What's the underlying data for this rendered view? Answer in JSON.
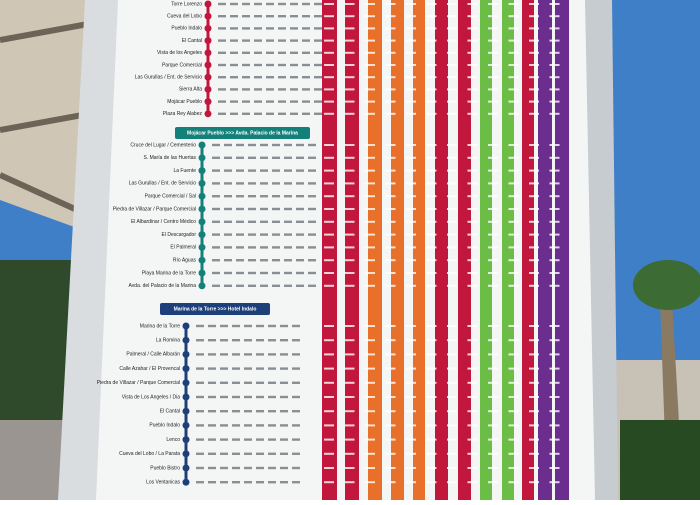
{
  "banners": [
    "Mojácar Pueblo >>> Avda. Palacio de la Marina",
    "Marina de la Torre >>> Hotel Indalo"
  ],
  "sections": [
    {
      "stops": [
        "Torre Lorenzo",
        "Cueva del Lobo",
        "Pueblo Indalo",
        "El Cantal",
        "Vista de los Angeles",
        "Parque Comercial",
        "Las Gurullas / Ent. de Servicio",
        "Sierra Alta",
        "Mojácar Pueblo",
        "Plaza Rey Alabez"
      ]
    },
    {
      "stops": [
        "Cruce del Lugar / Cementerio",
        "S. María de las Huertas",
        "La Fuente",
        "Las Gurullas / Ent. de Servicio",
        "Parque Comercial / Sal",
        "Piedra de Villazar / Parque Comercial",
        "El Albardinar / Centro Médico",
        "El Descargador",
        "El Palmeral",
        "Río Aguas",
        "Playa Marina de la Torre",
        "Avda. del Palacio de la Marina"
      ]
    },
    {
      "stops": [
        "Marina de la Torre",
        "La Romina",
        "Palmeral / Calle Albarán",
        "Calle Azahar / El Provencal",
        "Piedra de Villazar / Parque Comercial",
        "Vista de Los Angeles / Dia",
        "El Cantal",
        "Pueblo Indalo",
        "Lenco",
        "Cueva del Lobo / La Parata",
        "Pueblo Bistro",
        "Los Ventanicas"
      ]
    }
  ]
}
